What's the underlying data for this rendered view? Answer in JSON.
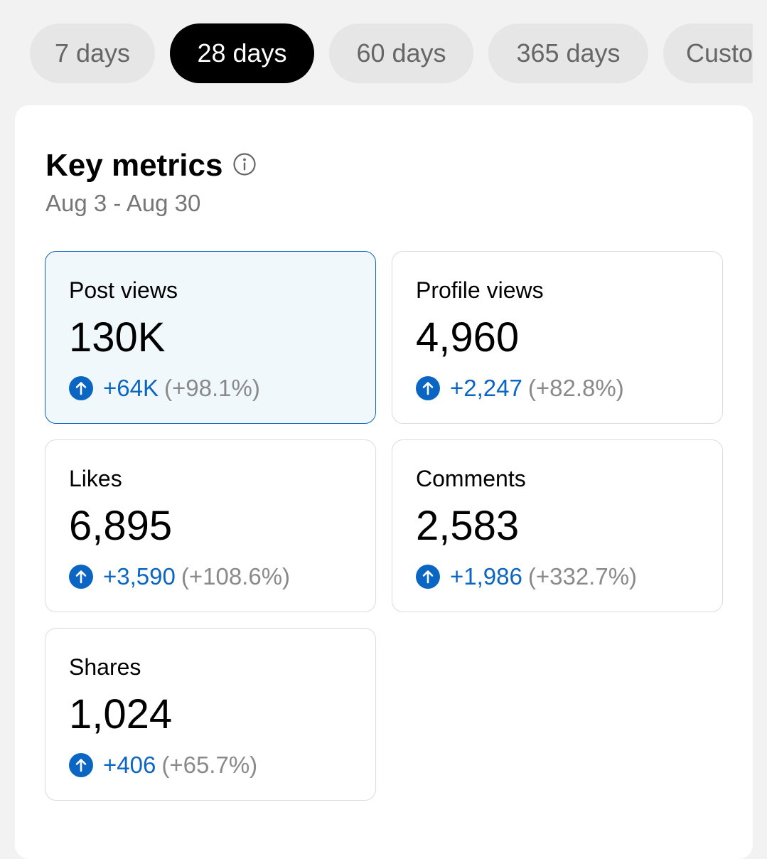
{
  "tabs": [
    {
      "label": "7 days",
      "active": false
    },
    {
      "label": "28 days",
      "active": true
    },
    {
      "label": "60 days",
      "active": false
    },
    {
      "label": "365 days",
      "active": false
    },
    {
      "label": "Custom",
      "active": false
    }
  ],
  "header": {
    "title": "Key metrics",
    "date_range": "Aug 3 - Aug 30"
  },
  "metrics": [
    {
      "label": "Post views",
      "value": "130K",
      "delta": "+64K",
      "pct": "(+98.1%)",
      "selected": true
    },
    {
      "label": "Profile views",
      "value": "4,960",
      "delta": "+2,247",
      "pct": "(+82.8%)",
      "selected": false
    },
    {
      "label": "Likes",
      "value": "6,895",
      "delta": "+3,590",
      "pct": "(+108.6%)",
      "selected": false
    },
    {
      "label": "Comments",
      "value": "2,583",
      "delta": "+1,986",
      "pct": "(+332.7%)",
      "selected": false
    },
    {
      "label": "Shares",
      "value": "1,024",
      "delta": "+406",
      "pct": "(+65.7%)",
      "selected": false
    }
  ],
  "icons": {
    "info": "info-icon",
    "trend": "arrow-up-circle-icon"
  },
  "colors": {
    "accent": "#0a66c2",
    "selected_bg": "#f1f8fc",
    "active_tab_bg": "#000000",
    "inactive_tab_bg": "#e6e6e6",
    "muted_text": "#767676"
  }
}
